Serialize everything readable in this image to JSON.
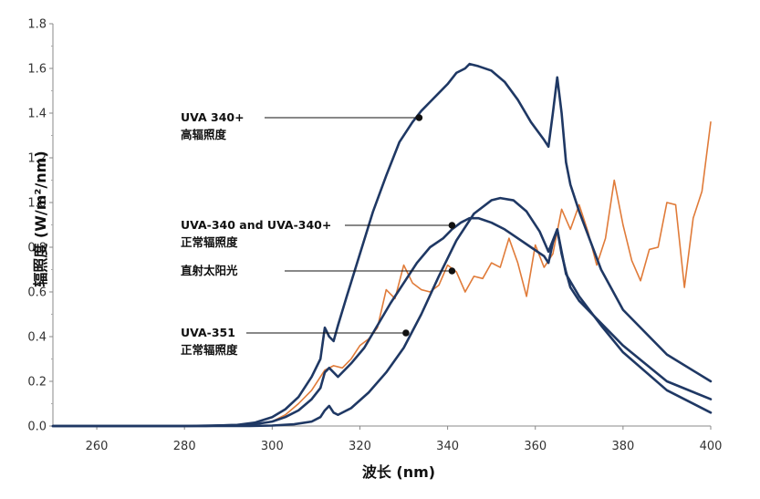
{
  "chart_data": {
    "type": "line",
    "title": "",
    "xlabel": "波长 (nm)",
    "ylabel": "辐照度 (W/m²/nm)",
    "xlim": [
      250,
      400
    ],
    "ylim": [
      0,
      1.8
    ],
    "xticks": [
      "260",
      "280",
      "300",
      "320",
      "340",
      "360",
      "380",
      "400"
    ],
    "yticks": [
      "0.0",
      "0.2",
      "0.4",
      "0.6",
      "0.8",
      "1.0",
      "1.2",
      "1.4",
      "1.6",
      "1.8"
    ],
    "grid": false,
    "legend": "none",
    "series": [
      {
        "name": "UVA 340+ 高辐照度",
        "color": "#1f3864",
        "x": [
          250,
          270,
          285,
          292,
          296,
          300,
          303,
          306,
          309,
          311,
          312,
          313,
          314,
          315,
          317,
          320,
          323,
          326,
          329,
          332,
          334,
          336,
          338,
          340,
          342,
          344,
          345,
          347,
          350,
          353,
          356,
          359,
          362,
          363,
          364,
          365,
          366,
          367,
          368,
          370,
          375,
          380,
          390,
          400
        ],
        "y": [
          0,
          0,
          0,
          0.005,
          0.015,
          0.04,
          0.075,
          0.13,
          0.22,
          0.3,
          0.44,
          0.4,
          0.38,
          0.45,
          0.58,
          0.77,
          0.96,
          1.12,
          1.27,
          1.36,
          1.41,
          1.45,
          1.49,
          1.53,
          1.58,
          1.6,
          1.62,
          1.61,
          1.59,
          1.54,
          1.46,
          1.36,
          1.28,
          1.25,
          1.4,
          1.56,
          1.4,
          1.18,
          1.08,
          0.96,
          0.7,
          0.52,
          0.32,
          0.2
        ]
      },
      {
        "name": "UVA-340 and UVA-340+ 正常辐照度",
        "color": "#1f3864",
        "x": [
          250,
          280,
          295,
          300,
          303,
          306,
          309,
          311,
          312,
          313,
          315,
          318,
          321,
          324,
          327,
          330,
          333,
          336,
          339,
          341,
          343,
          345,
          347,
          350,
          353,
          356,
          359,
          362,
          363,
          364,
          365,
          366,
          367,
          368,
          370,
          375,
          380,
          390,
          400
        ],
        "y": [
          0,
          0,
          0.005,
          0.02,
          0.04,
          0.07,
          0.12,
          0.17,
          0.24,
          0.26,
          0.22,
          0.28,
          0.35,
          0.45,
          0.55,
          0.64,
          0.73,
          0.8,
          0.84,
          0.88,
          0.91,
          0.93,
          0.93,
          0.91,
          0.88,
          0.84,
          0.8,
          0.76,
          0.73,
          0.82,
          0.88,
          0.77,
          0.69,
          0.62,
          0.56,
          0.46,
          0.36,
          0.2,
          0.12
        ]
      },
      {
        "name": "直射太阳光",
        "color": "#e07b39",
        "x": [
          250,
          290,
          295,
          300,
          303,
          306,
          309,
          312,
          314,
          316,
          318,
          320,
          322,
          324,
          326,
          328,
          330,
          332,
          334,
          336,
          338,
          340,
          342,
          344,
          346,
          348,
          350,
          352,
          354,
          356,
          358,
          360,
          362,
          364,
          366,
          368,
          370,
          372,
          374,
          376,
          378,
          380,
          382,
          384,
          386,
          388,
          390,
          392,
          394,
          396,
          398,
          400
        ],
        "y": [
          0,
          0,
          0.005,
          0.02,
          0.05,
          0.1,
          0.16,
          0.25,
          0.27,
          0.26,
          0.3,
          0.36,
          0.39,
          0.44,
          0.61,
          0.57,
          0.72,
          0.64,
          0.61,
          0.6,
          0.63,
          0.72,
          0.69,
          0.6,
          0.67,
          0.66,
          0.73,
          0.71,
          0.84,
          0.73,
          0.58,
          0.81,
          0.71,
          0.77,
          0.97,
          0.88,
          0.99,
          0.87,
          0.72,
          0.84,
          1.1,
          0.9,
          0.74,
          0.65,
          0.79,
          0.8,
          1.0,
          0.99,
          0.62,
          0.93,
          1.05,
          1.36
        ]
      },
      {
        "name": "UVA-351 正常辐照度",
        "color": "#1f3864",
        "x": [
          250,
          295,
          300,
          305,
          309,
          311,
          312,
          313,
          314,
          315,
          318,
          322,
          326,
          330,
          334,
          338,
          342,
          346,
          350,
          352,
          355,
          358,
          361,
          363,
          365,
          367,
          370,
          375,
          380,
          390,
          400
        ],
        "y": [
          0,
          0,
          0.002,
          0.008,
          0.02,
          0.04,
          0.07,
          0.09,
          0.06,
          0.05,
          0.08,
          0.15,
          0.24,
          0.35,
          0.5,
          0.67,
          0.83,
          0.95,
          1.01,
          1.02,
          1.01,
          0.96,
          0.87,
          0.78,
          0.88,
          0.68,
          0.58,
          0.45,
          0.33,
          0.16,
          0.06
        ]
      }
    ],
    "annotations": [
      {
        "lines": [
          "UVA 340+",
          "高辐照度"
        ],
        "point": [
          333.5,
          1.38
        ]
      },
      {
        "lines": [
          "UVA-340 and UVA-340+",
          "正常辐照度"
        ],
        "point": [
          341,
          0.9
        ]
      },
      {
        "lines": [
          "直射太阳光"
        ],
        "point": [
          341,
          0.7
        ]
      },
      {
        "lines": [
          "UVA-351",
          "正常辐照度"
        ],
        "point": [
          330.5,
          0.43
        ]
      }
    ]
  }
}
